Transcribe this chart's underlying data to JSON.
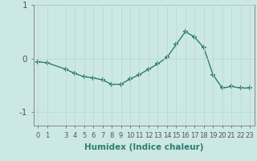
{
  "x": [
    0,
    1,
    3,
    4,
    5,
    6,
    7,
    8,
    9,
    10,
    11,
    12,
    13,
    14,
    15,
    16,
    17,
    18,
    19,
    20,
    21,
    22,
    23
  ],
  "y": [
    -0.06,
    -0.08,
    -0.2,
    -0.28,
    -0.34,
    -0.36,
    -0.4,
    -0.48,
    -0.48,
    -0.38,
    -0.3,
    -0.2,
    -0.1,
    0.02,
    0.26,
    0.5,
    0.4,
    0.2,
    -0.3,
    -0.55,
    -0.52,
    -0.55,
    -0.55
  ],
  "xlabel": "Humidex (Indice chaleur)",
  "ylabel": "",
  "ylim": [
    -1.25,
    0.75
  ],
  "xlim": [
    -0.5,
    23.5
  ],
  "yticks": [
    -1,
    0,
    1
  ],
  "xticks": [
    0,
    1,
    3,
    4,
    5,
    6,
    7,
    8,
    9,
    10,
    11,
    12,
    13,
    14,
    15,
    16,
    17,
    18,
    19,
    20,
    21,
    22,
    23
  ],
  "line_color": "#2e7d72",
  "marker": "+",
  "marker_size": 4,
  "bg_color": "#cce8e4",
  "grid_color": "#b8d8d4",
  "axis_color": "#888888",
  "xlabel_fontsize": 7.5,
  "ytick_fontsize": 7.5,
  "xtick_fontsize": 6.0,
  "tick_color": "#555555"
}
